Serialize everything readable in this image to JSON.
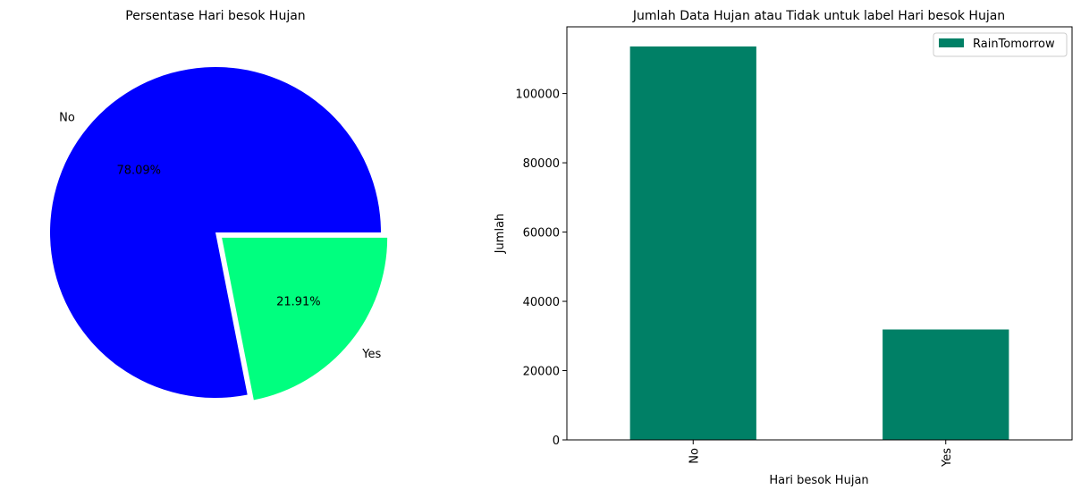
{
  "chart_data": [
    {
      "type": "pie",
      "title": "Persentase Hari besok Hujan",
      "labels": [
        "No",
        "Yes"
      ],
      "values": [
        78.09,
        21.91
      ],
      "pct_labels": [
        "78.09%",
        "21.91%"
      ],
      "colors": [
        "#0000ff",
        "#00ff7f"
      ],
      "explode": [
        0,
        0.05
      ]
    },
    {
      "type": "bar",
      "title": "Jumlah Data Hujan atau Tidak untuk label Hari besok Hujan",
      "categories": [
        "No",
        "Yes"
      ],
      "series": [
        {
          "name": "RainTomorrow",
          "values": [
            113583,
            31877
          ]
        }
      ],
      "xlabel": "Hari besok Hujan",
      "ylabel": "Jumlah",
      "ylim": [
        0,
        119256
      ],
      "yticks": [
        0,
        20000,
        40000,
        60000,
        80000,
        100000
      ],
      "bar_color": "#008066",
      "legend": "top-right"
    }
  ]
}
